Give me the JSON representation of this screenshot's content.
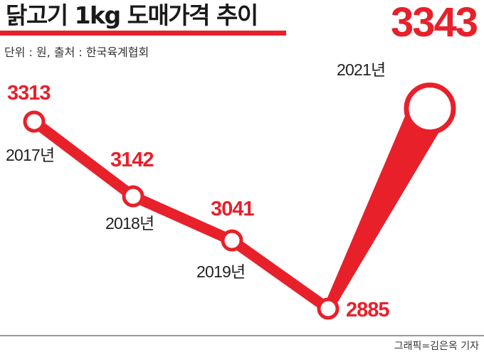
{
  "chart_data": {
    "type": "line",
    "title": "닭고기 1kg 도매가격 추이",
    "subtitle": "단위 : 원, 출처 : 한국육계협회",
    "credit": "그래픽=김은옥 기자",
    "accent_color": "#e8202a",
    "categories": [
      "2017년",
      "2018년",
      "2019년",
      "",
      "2021년"
    ],
    "values": [
      3313,
      3142,
      3041,
      2885,
      3343
    ],
    "highlight": {
      "category": "2021년",
      "value": 3343
    }
  }
}
